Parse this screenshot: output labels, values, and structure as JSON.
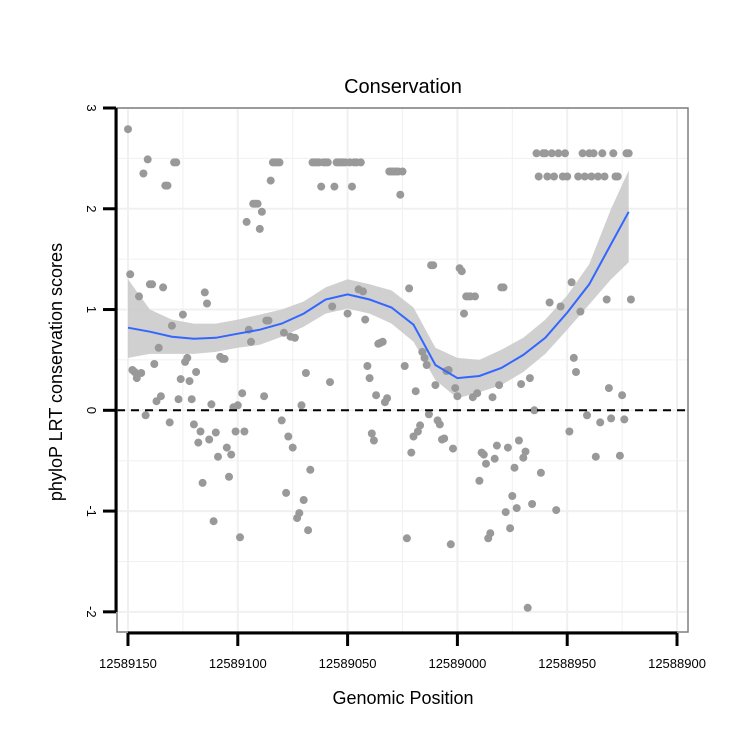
{
  "chart_data": {
    "type": "scatter",
    "title": "Conservation",
    "xlabel": "Genomic Position",
    "ylabel": "phyloP LRT conservation scores",
    "xlim": [
      12589155,
      12588895
    ],
    "ylim": [
      -2.2,
      3.0
    ],
    "x_reversed": true,
    "x_ticks": [
      12589150,
      12589100,
      12589050,
      12589000,
      12588950,
      12588900
    ],
    "x_tick_labels": [
      "12589150",
      "12589100",
      "12589050",
      "12589000",
      "12588950",
      "12588900"
    ],
    "y_ticks": [
      -2,
      -1,
      0,
      1,
      2,
      3
    ],
    "y_tick_labels": [
      "-2",
      "-1",
      "0",
      "1",
      "2",
      "3"
    ],
    "reference_line_y": 0,
    "grid": true,
    "colors": {
      "points": "#999999",
      "smooth_line": "#3366ff",
      "confidence_band": "#c8c8c8",
      "panel_border": "#7f7f7f",
      "grid": "#f0f0f0"
    },
    "points": [
      [
        12589150,
        2.79
      ],
      [
        12589149,
        1.35
      ],
      [
        12589148,
        0.4
      ],
      [
        12589147,
        0.38
      ],
      [
        12589146,
        0.32
      ],
      [
        12589145,
        1.13
      ],
      [
        12589144,
        0.37
      ],
      [
        12589143,
        2.35
      ],
      [
        12589142,
        -0.05
      ],
      [
        12589141,
        2.49
      ],
      [
        12589140,
        1.25
      ],
      [
        12589139,
        1.25
      ],
      [
        12589138,
        0.46
      ],
      [
        12589137,
        0.09
      ],
      [
        12589136,
        0.62
      ],
      [
        12589135,
        0.14
      ],
      [
        12589134,
        1.22
      ],
      [
        12589133,
        2.23
      ],
      [
        12589132,
        2.23
      ],
      [
        12589131,
        -0.12
      ],
      [
        12589130,
        0.84
      ],
      [
        12589129,
        2.46
      ],
      [
        12589128,
        2.46
      ],
      [
        12589127,
        0.11
      ],
      [
        12589126,
        0.31
      ],
      [
        12589125,
        0.95
      ],
      [
        12589124,
        0.48
      ],
      [
        12589123,
        0.52
      ],
      [
        12589122,
        0.29
      ],
      [
        12589121,
        0.11
      ],
      [
        12589120,
        -0.14
      ],
      [
        12589119,
        0.38
      ],
      [
        12589118,
        -0.32
      ],
      [
        12589117,
        -0.21
      ],
      [
        12589116,
        -0.72
      ],
      [
        12589115,
        1.17
      ],
      [
        12589114,
        1.06
      ],
      [
        12589113,
        -0.29
      ],
      [
        12589112,
        0.06
      ],
      [
        12589111,
        -1.1
      ],
      [
        12589110,
        -0.22
      ],
      [
        12589109,
        -0.46
      ],
      [
        12589108,
        0.53
      ],
      [
        12589107,
        0.51
      ],
      [
        12589106,
        0.51
      ],
      [
        12589105,
        -0.37
      ],
      [
        12589104,
        -0.66
      ],
      [
        12589103,
        -0.44
      ],
      [
        12589102,
        0.03
      ],
      [
        12589101,
        -0.21
      ],
      [
        12589100,
        0.05
      ],
      [
        12589099,
        -1.26
      ],
      [
        12589098,
        0.17
      ],
      [
        12589097,
        -0.21
      ],
      [
        12589096,
        1.87
      ],
      [
        12589095,
        0.8
      ],
      [
        12589094,
        0.68
      ],
      [
        12589093,
        2.05
      ],
      [
        12589092,
        2.05
      ],
      [
        12589091,
        2.05
      ],
      [
        12589090,
        1.8
      ],
      [
        12589089,
        1.97
      ],
      [
        12589088,
        0.14
      ],
      [
        12589087,
        0.89
      ],
      [
        12589086,
        0.89
      ],
      [
        12589085,
        2.28
      ],
      [
        12589084,
        2.46
      ],
      [
        12589083,
        2.46
      ],
      [
        12589082,
        2.46
      ],
      [
        12589081,
        2.46
      ],
      [
        12589080,
        -0.1
      ],
      [
        12589079,
        0.77
      ],
      [
        12589078,
        -0.82
      ],
      [
        12589077,
        -0.26
      ],
      [
        12589076,
        0.73
      ],
      [
        12589075,
        -0.37
      ],
      [
        12589074,
        0.72
      ],
      [
        12589073,
        -1.07
      ],
      [
        12589072,
        -1.02
      ],
      [
        12589071,
        0.05
      ],
      [
        12589070,
        -0.89
      ],
      [
        12589069,
        0.37
      ],
      [
        12589068,
        -1.19
      ],
      [
        12589067,
        -0.59
      ],
      [
        12589066,
        2.46
      ],
      [
        12589065,
        2.46
      ],
      [
        12589064,
        2.46
      ],
      [
        12589063,
        2.46
      ],
      [
        12589062,
        2.22
      ],
      [
        12589061,
        2.46
      ],
      [
        12589060,
        2.46
      ],
      [
        12589059,
        2.46
      ],
      [
        12589058,
        0.28
      ],
      [
        12589057,
        1.03
      ],
      [
        12589056,
        2.22
      ],
      [
        12589055,
        2.46
      ],
      [
        12589054,
        2.46
      ],
      [
        12589053,
        2.46
      ],
      [
        12589052,
        2.46
      ],
      [
        12589051,
        2.46
      ],
      [
        12589050,
        0.96
      ],
      [
        12589049,
        2.46
      ],
      [
        12589048,
        2.22
      ],
      [
        12589047,
        2.46
      ],
      [
        12589046,
        2.46
      ],
      [
        12589045,
        1.2
      ],
      [
        12589044,
        2.46
      ],
      [
        12589043,
        1.18
      ],
      [
        12589042,
        0.9
      ],
      [
        12589041,
        0.44
      ],
      [
        12589040,
        0.32
      ],
      [
        12589039,
        -0.23
      ],
      [
        12589038,
        -0.3
      ],
      [
        12589037,
        0.15
      ],
      [
        12589036,
        0.66
      ],
      [
        12589035,
        0.67
      ],
      [
        12589034,
        0.68
      ],
      [
        12589033,
        0.08
      ],
      [
        12589032,
        0.12
      ],
      [
        12589031,
        2.37
      ],
      [
        12589030,
        2.37
      ],
      [
        12589029,
        2.37
      ],
      [
        12589028,
        2.37
      ],
      [
        12589027,
        2.37
      ],
      [
        12589026,
        2.14
      ],
      [
        12589025,
        2.37
      ],
      [
        12589024,
        0.44
      ],
      [
        12589023,
        -1.27
      ],
      [
        12589022,
        1.21
      ],
      [
        12589021,
        -0.42
      ],
      [
        12589020,
        -0.26
      ],
      [
        12589019,
        0.19
      ],
      [
        12589018,
        -0.21
      ],
      [
        12589017,
        -0.15
      ],
      [
        12589016,
        0.58
      ],
      [
        12589015,
        0.52
      ],
      [
        12589014,
        0.45
      ],
      [
        12589013,
        -0.04
      ],
      [
        12589012,
        1.44
      ],
      [
        12589011,
        1.44
      ],
      [
        12589010,
        0.25
      ],
      [
        12589009,
        -0.1
      ],
      [
        12589008,
        -0.14
      ],
      [
        12589007,
        -0.29
      ],
      [
        12589006,
        -0.28
      ],
      [
        12589005,
        0.39
      ],
      [
        12589004,
        0.4
      ],
      [
        12589003,
        -1.33
      ],
      [
        12589002,
        -0.38
      ],
      [
        12589001,
        0.22
      ],
      [
        12589000,
        0.14
      ],
      [
        12588999,
        1.41
      ],
      [
        12588998,
        1.38
      ],
      [
        12588997,
        0.96
      ],
      [
        12588996,
        1.13
      ],
      [
        12588995,
        1.13
      ],
      [
        12588994,
        1.13
      ],
      [
        12588993,
        0.13
      ],
      [
        12588992,
        1.13
      ],
      [
        12588991,
        0.17
      ],
      [
        12588990,
        -0.7
      ],
      [
        12588989,
        -0.42
      ],
      [
        12588988,
        -0.44
      ],
      [
        12588987,
        -0.53
      ],
      [
        12588986,
        -1.27
      ],
      [
        12588985,
        -1.22
      ],
      [
        12588984,
        0.13
      ],
      [
        12588983,
        -0.48
      ],
      [
        12588982,
        -0.35
      ],
      [
        12588981,
        0.25
      ],
      [
        12588980,
        1.22
      ],
      [
        12588979,
        1.22
      ],
      [
        12588978,
        -1.01
      ],
      [
        12588977,
        -0.37
      ],
      [
        12588976,
        -1.17
      ],
      [
        12588975,
        -0.85
      ],
      [
        12588974,
        -0.57
      ],
      [
        12588973,
        -0.97
      ],
      [
        12588972,
        -0.3
      ],
      [
        12588971,
        0.26
      ],
      [
        12588970,
        -0.47
      ],
      [
        12588969,
        -0.41
      ],
      [
        12588968,
        -1.96
      ],
      [
        12588967,
        0.32
      ],
      [
        12588966,
        -0.93
      ],
      [
        12588965,
        0.0
      ],
      [
        12588964,
        2.55
      ],
      [
        12588963,
        2.32
      ],
      [
        12588962,
        -0.62
      ],
      [
        12588961,
        2.55
      ],
      [
        12588960,
        2.55
      ],
      [
        12588959,
        2.32
      ],
      [
        12588958,
        1.07
      ],
      [
        12588957,
        2.55
      ],
      [
        12588956,
        2.32
      ],
      [
        12588955,
        -0.99
      ],
      [
        12588954,
        2.55
      ],
      [
        12588953,
        1.03
      ],
      [
        12588952,
        2.32
      ],
      [
        12588951,
        2.55
      ],
      [
        12588950,
        2.32
      ],
      [
        12588949,
        -0.21
      ],
      [
        12588948,
        1.27
      ],
      [
        12588947,
        0.52
      ],
      [
        12588946,
        0.38
      ],
      [
        12588945,
        2.32
      ],
      [
        12588944,
        0.98
      ],
      [
        12588943,
        2.55
      ],
      [
        12588942,
        2.32
      ],
      [
        12588941,
        -0.05
      ],
      [
        12588940,
        2.55
      ],
      [
        12588939,
        2.32
      ],
      [
        12588938,
        2.55
      ],
      [
        12588937,
        -0.46
      ],
      [
        12588936,
        2.32
      ],
      [
        12588935,
        -0.12
      ],
      [
        12588934,
        2.55
      ],
      [
        12588933,
        2.32
      ],
      [
        12588932,
        1.1
      ],
      [
        12588931,
        0.22
      ],
      [
        12588930,
        -0.08
      ],
      [
        12588929,
        2.55
      ],
      [
        12588928,
        2.32
      ],
      [
        12588927,
        2.32
      ],
      [
        12588926,
        -0.45
      ],
      [
        12588925,
        0.15
      ],
      [
        12588924,
        -0.09
      ],
      [
        12588923,
        2.55
      ],
      [
        12588922,
        2.55
      ],
      [
        12588921,
        1.1
      ]
    ],
    "smooth_fit": {
      "x": [
        12589150,
        12589140,
        12589130,
        12589120,
        12589110,
        12589100,
        12589090,
        12589080,
        12589070,
        12589060,
        12589050,
        12589040,
        12589030,
        12589020,
        12589010,
        12589000,
        12588990,
        12588980,
        12588970,
        12588960,
        12588950,
        12588940,
        12588930,
        12588922
      ],
      "y": [
        0.82,
        0.78,
        0.73,
        0.71,
        0.72,
        0.76,
        0.8,
        0.86,
        0.96,
        1.1,
        1.15,
        1.1,
        1.02,
        0.85,
        0.45,
        0.32,
        0.34,
        0.42,
        0.55,
        0.72,
        0.97,
        1.25,
        1.65,
        1.97
      ],
      "lower": [
        0.52,
        0.56,
        0.56,
        0.56,
        0.58,
        0.62,
        0.65,
        0.73,
        0.83,
        0.96,
        1.01,
        0.96,
        0.86,
        0.68,
        0.3,
        0.12,
        0.18,
        0.25,
        0.38,
        0.56,
        0.8,
        1.05,
        1.3,
        1.47
      ],
      "upper": [
        1.3,
        1.0,
        0.9,
        0.86,
        0.86,
        0.9,
        0.95,
        1.0,
        1.08,
        1.22,
        1.3,
        1.25,
        1.19,
        1.02,
        0.62,
        0.52,
        0.5,
        0.6,
        0.72,
        0.9,
        1.14,
        1.45,
        2.0,
        2.38
      ]
    }
  }
}
